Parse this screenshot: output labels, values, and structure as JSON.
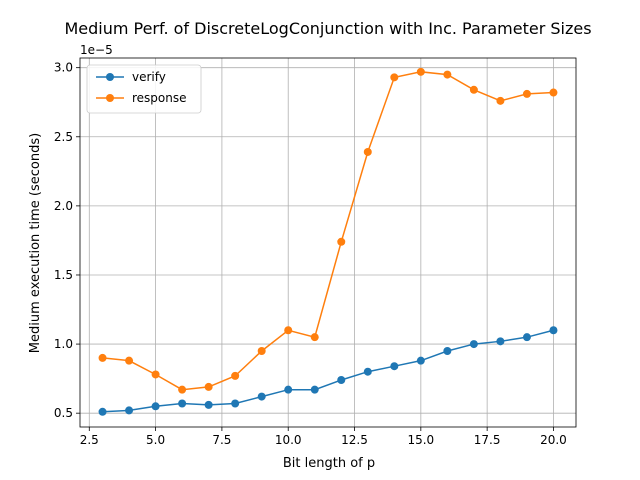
{
  "chart_data": {
    "type": "line",
    "title": "Medium Perf. of DiscreteLogConjunction with Inc. Parameter Sizes",
    "xlabel": "Bit length of p",
    "ylabel": "Medium execution time (seconds)",
    "y_offset_label": "1e−5",
    "xlim": [
      2.15,
      20.85
    ],
    "ylim": [
      0.4,
      3.07
    ],
    "y_scale_note": "values shown in units of 1e-5 seconds",
    "grid": true,
    "legend_position": "top-left",
    "xticks": [
      {
        "value": 2.5,
        "label": "2.5"
      },
      {
        "value": 5.0,
        "label": "5.0"
      },
      {
        "value": 7.5,
        "label": "7.5"
      },
      {
        "value": 10.0,
        "label": "10.0"
      },
      {
        "value": 12.5,
        "label": "12.5"
      },
      {
        "value": 15.0,
        "label": "15.0"
      },
      {
        "value": 17.5,
        "label": "17.5"
      },
      {
        "value": 20.0,
        "label": "20.0"
      }
    ],
    "yticks": [
      {
        "value": 0.5,
        "label": "0.5"
      },
      {
        "value": 1.0,
        "label": "1.0"
      },
      {
        "value": 1.5,
        "label": "1.5"
      },
      {
        "value": 2.0,
        "label": "2.0"
      },
      {
        "value": 2.5,
        "label": "2.5"
      },
      {
        "value": 3.0,
        "label": "3.0"
      }
    ],
    "x": [
      3,
      4,
      5,
      6,
      7,
      8,
      9,
      10,
      11,
      12,
      13,
      14,
      15,
      16,
      17,
      18,
      19,
      20
    ],
    "series": [
      {
        "name": "verify",
        "color": "#1f77b4",
        "values": [
          0.51,
          0.52,
          0.55,
          0.57,
          0.56,
          0.57,
          0.62,
          0.67,
          0.67,
          0.74,
          0.8,
          0.84,
          0.88,
          0.95,
          1.0,
          1.02,
          1.05,
          1.1
        ]
      },
      {
        "name": "response",
        "color": "#ff7f0e",
        "values": [
          0.9,
          0.88,
          0.78,
          0.67,
          0.69,
          0.77,
          0.95,
          1.1,
          1.05,
          1.74,
          2.39,
          2.93,
          2.97,
          2.95,
          2.84,
          2.76,
          2.81,
          2.82
        ]
      }
    ]
  }
}
